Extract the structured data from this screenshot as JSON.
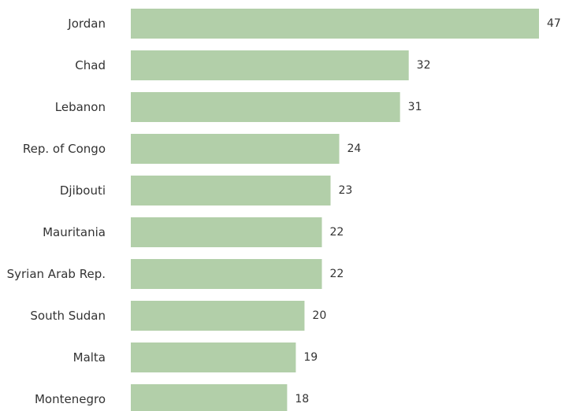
{
  "chart_data": {
    "type": "bar",
    "orientation": "horizontal",
    "categories": [
      "Jordan",
      "Chad",
      "Lebanon",
      "Rep. of Congo",
      "Djibouti",
      "Mauritania",
      "Syrian Arab Rep.",
      "South Sudan",
      "Malta",
      "Montenegro"
    ],
    "values": [
      47,
      32,
      31,
      24,
      23,
      22,
      22,
      20,
      19,
      18
    ],
    "title": "",
    "xlabel": "",
    "ylabel": "",
    "xlim": [
      0,
      47
    ],
    "grid": false,
    "legend": "none",
    "bar_color": "#b2cfa9",
    "text_color": "#333333"
  }
}
